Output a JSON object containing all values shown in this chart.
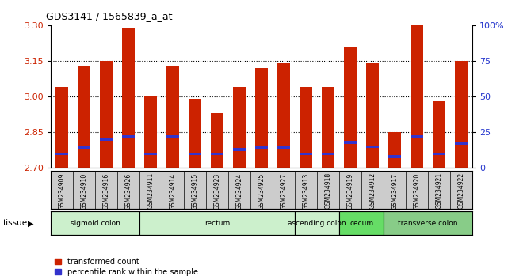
{
  "title": "GDS3141 / 1565839_a_at",
  "samples": [
    "GSM234909",
    "GSM234910",
    "GSM234916",
    "GSM234926",
    "GSM234911",
    "GSM234914",
    "GSM234915",
    "GSM234923",
    "GSM234924",
    "GSM234925",
    "GSM234927",
    "GSM234913",
    "GSM234918",
    "GSM234919",
    "GSM234912",
    "GSM234917",
    "GSM234920",
    "GSM234921",
    "GSM234922"
  ],
  "transformed_count": [
    3.04,
    3.13,
    3.15,
    3.29,
    3.0,
    3.13,
    2.99,
    2.93,
    3.04,
    3.12,
    3.14,
    3.04,
    3.04,
    3.21,
    3.14,
    2.85,
    3.3,
    2.98,
    3.15
  ],
  "percentile_rank": [
    10,
    14,
    20,
    22,
    10,
    22,
    10,
    10,
    13,
    14,
    14,
    10,
    10,
    18,
    15,
    8,
    22,
    10,
    17
  ],
  "bar_color": "#cc2200",
  "blue_color": "#3333cc",
  "ylim_left": [
    2.7,
    3.3
  ],
  "ylim_right": [
    0,
    100
  ],
  "yticks_left": [
    2.7,
    2.85,
    3.0,
    3.15,
    3.3
  ],
  "yticks_right": [
    0,
    25,
    50,
    75,
    100
  ],
  "gridlines": [
    2.85,
    3.0,
    3.15
  ],
  "tissue_groups": [
    {
      "label": "sigmoid colon",
      "start": 0,
      "end": 4,
      "color": "#ccf0cc"
    },
    {
      "label": "rectum",
      "start": 4,
      "end": 11,
      "color": "#ccf0cc"
    },
    {
      "label": "ascending colon",
      "start": 11,
      "end": 13,
      "color": "#ccf0cc"
    },
    {
      "label": "cecum",
      "start": 13,
      "end": 15,
      "color": "#66dd66"
    },
    {
      "label": "transverse colon",
      "start": 15,
      "end": 19,
      "color": "#88cc88"
    }
  ],
  "bar_width": 0.55,
  "background_color": "#ffffff",
  "plot_bg_color": "#ffffff",
  "tick_label_color_left": "#cc2200",
  "tick_label_color_right": "#2233cc",
  "xtick_bg_color": "#cccccc",
  "tissue_label": "tissue"
}
